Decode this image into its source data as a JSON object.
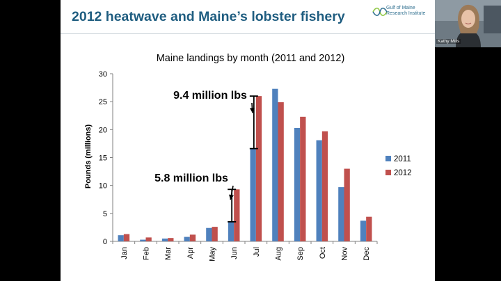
{
  "slide": {
    "title": "2012 heatwave and Maine’s lobster fishery",
    "logo_line1": "Gulf of Maine",
    "logo_line2": "Research Institute",
    "logo_color": "#2f6f8f"
  },
  "video": {
    "participant_name": "Kathy Mills"
  },
  "chart_data": {
    "type": "bar",
    "title": "Maine landings by month (2011 and 2012)",
    "ylabel": "Pounds (millions)",
    "xlabel": "",
    "ylim": [
      0,
      30
    ],
    "yticks": [
      0,
      5,
      10,
      15,
      20,
      25,
      30
    ],
    "grid": false,
    "legend_position": "right",
    "categories": [
      "Jan",
      "Feb",
      "Mar",
      "Apr",
      "May",
      "Jun",
      "Jul",
      "Aug",
      "Sep",
      "Oct",
      "Nov",
      "Dec"
    ],
    "series": [
      {
        "name": "2011",
        "color": "#4f81bd",
        "values": [
          1.1,
          0.3,
          0.5,
          0.8,
          2.4,
          3.5,
          16.6,
          27.3,
          20.3,
          18.1,
          9.7,
          3.7
        ]
      },
      {
        "name": "2012",
        "color": "#c0504d",
        "values": [
          1.3,
          0.7,
          0.6,
          1.2,
          2.6,
          9.3,
          26.0,
          24.9,
          22.3,
          19.7,
          13.0,
          4.4
        ]
      }
    ],
    "annotations": [
      {
        "text": "9.4 million lbs",
        "category": "Jul",
        "from": 16.6,
        "to": 26.0
      },
      {
        "text": "5.8 million lbs",
        "category": "Jun",
        "from": 3.5,
        "to": 9.3
      }
    ]
  }
}
